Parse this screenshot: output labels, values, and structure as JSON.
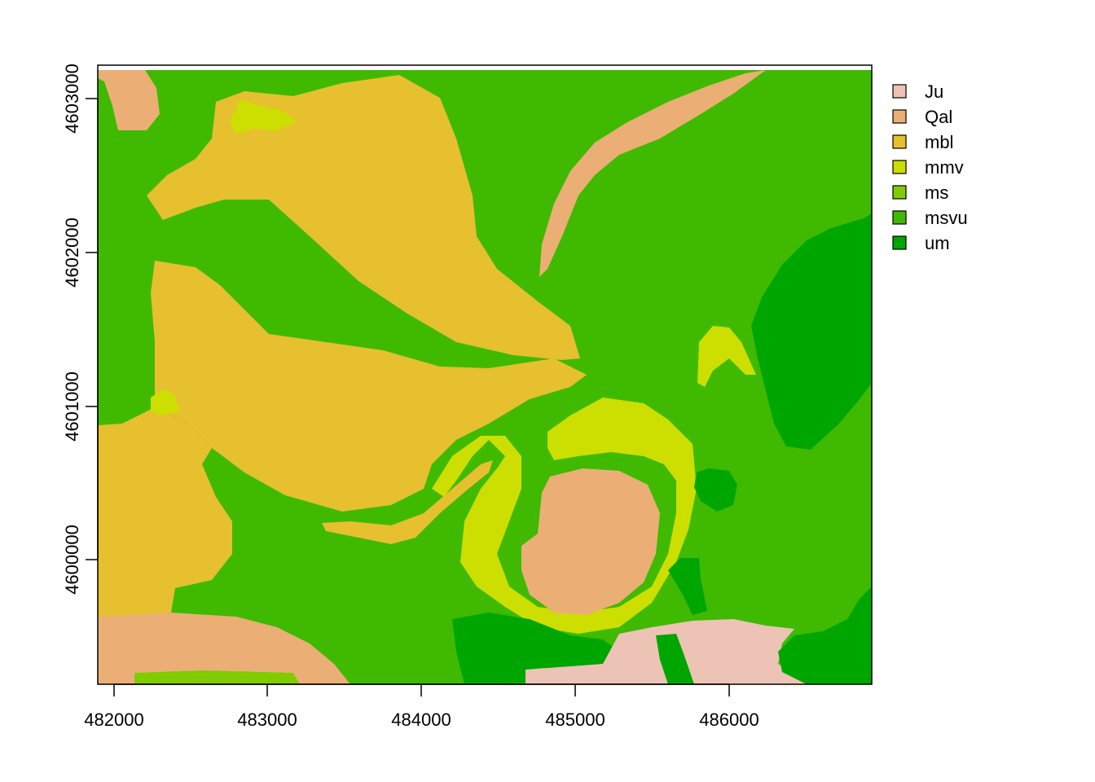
{
  "map": {
    "type": "raster",
    "x_ticks": [
      "482000",
      "483000",
      "484000",
      "485000",
      "486000"
    ],
    "y_ticks": [
      "4600000",
      "4601000",
      "4602000",
      "4603000"
    ],
    "legend": [
      {
        "name": "Ju",
        "color": "#EDC3B6"
      },
      {
        "name": "Qal",
        "color": "#EBAF76"
      },
      {
        "name": "mbl",
        "color": "#E6C02E"
      },
      {
        "name": "mmv",
        "color": "#CCDF00"
      },
      {
        "name": "ms",
        "color": "#80CC00"
      },
      {
        "name": "msvu",
        "color": "#3FBA00"
      },
      {
        "name": "um",
        "color": "#00A600"
      }
    ],
    "legend_placement": "right"
  }
}
